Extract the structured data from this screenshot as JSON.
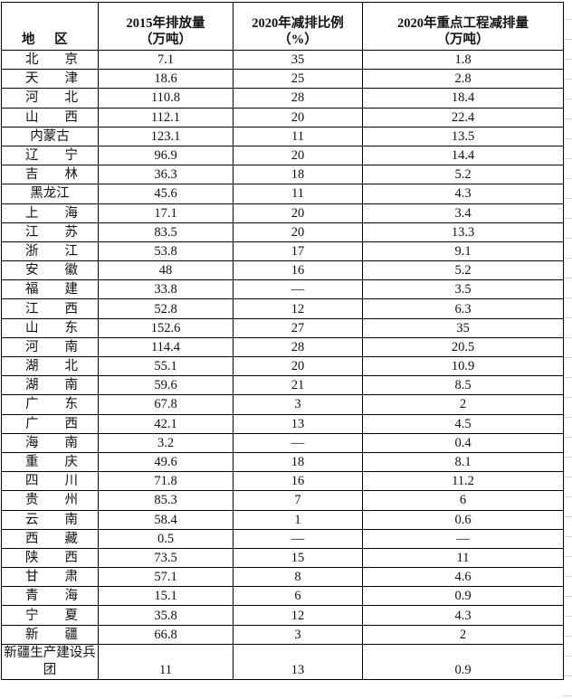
{
  "headers": {
    "region": "地 区",
    "emission_2015": [
      "2015年排放量",
      "（万吨）"
    ],
    "reduction_ratio_2020": [
      "2020年减排比例",
      "（%）"
    ],
    "key_project_reduction_2020": [
      "2020年重点工程减排量",
      "（万吨）"
    ]
  },
  "rows": [
    [
      "北 京",
      "7.1",
      "35",
      "1.8"
    ],
    [
      "天 津",
      "18.6",
      "25",
      "2.8"
    ],
    [
      "河 北",
      "110.8",
      "28",
      "18.4"
    ],
    [
      "山 西",
      "112.1",
      "20",
      "22.4"
    ],
    [
      "内蒙古",
      "123.1",
      "11",
      "13.5"
    ],
    [
      "辽 宁",
      "96.9",
      "20",
      "14.4"
    ],
    [
      "吉 林",
      "36.3",
      "18",
      "5.2"
    ],
    [
      "黑龙江",
      "45.6",
      "11",
      "4.3"
    ],
    [
      "上 海",
      "17.1",
      "20",
      "3.4"
    ],
    [
      "江 苏",
      "83.5",
      "20",
      "13.3"
    ],
    [
      "浙 江",
      "53.8",
      "17",
      "9.1"
    ],
    [
      "安 徽",
      "48",
      "16",
      "5.2"
    ],
    [
      "福 建",
      "33.8",
      "—",
      "3.5"
    ],
    [
      "江 西",
      "52.8",
      "12",
      "6.3"
    ],
    [
      "山 东",
      "152.6",
      "27",
      "35"
    ],
    [
      "河 南",
      "114.4",
      "28",
      "20.5"
    ],
    [
      "湖 北",
      "55.1",
      "20",
      "10.9"
    ],
    [
      "湖 南",
      "59.6",
      "21",
      "8.5"
    ],
    [
      "广 东",
      "67.8",
      "3",
      "2"
    ],
    [
      "广 西",
      "42.1",
      "13",
      "4.5"
    ],
    [
      "海 南",
      "3.2",
      "—",
      "0.4"
    ],
    [
      "重 庆",
      "49.6",
      "18",
      "8.1"
    ],
    [
      "四 川",
      "71.8",
      "16",
      "11.2"
    ],
    [
      "贵 州",
      "85.3",
      "7",
      "6"
    ],
    [
      "云 南",
      "58.4",
      "1",
      "0.6"
    ],
    [
      "西 藏",
      "0.5",
      "—",
      "—"
    ],
    [
      "陕 西",
      "73.5",
      "15",
      "11"
    ],
    [
      "甘 肃",
      "57.1",
      "8",
      "4.6"
    ],
    [
      "青 海",
      "15.1",
      "6",
      "0.9"
    ],
    [
      "宁 夏",
      "35.8",
      "12",
      "4.3"
    ],
    [
      "新 疆",
      "66.8",
      "3",
      "2"
    ],
    [
      "新疆生产建设兵团",
      "11",
      "13",
      "0.9"
    ]
  ]
}
